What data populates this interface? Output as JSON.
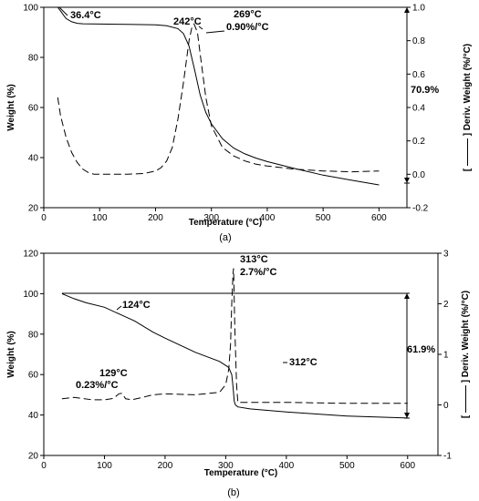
{
  "chart_data": [
    {
      "type": "line",
      "panel_label": "(a)",
      "xlabel": "Temperature (°C)",
      "ylabel": "Weight (%)",
      "ylabel_right": "[ ——— ] Deriv. Weight (%/°C)",
      "xlim": [
        0,
        650
      ],
      "ylim": [
        20,
        100
      ],
      "ylim_right": [
        -0.2,
        1.0
      ],
      "x_ticks": [
        "0",
        "100",
        "200",
        "300",
        "400",
        "500",
        "600"
      ],
      "y_ticks": [
        "20",
        "40",
        "60",
        "80",
        "100"
      ],
      "y_right_ticks": [
        "-0.2",
        "0.0",
        "0.2",
        "0.4",
        "0.6",
        "0.8",
        "1.0"
      ],
      "grid": false,
      "series": [
        {
          "axis": "left",
          "style": "solid",
          "x": [
            25,
            30,
            35,
            40,
            50,
            60,
            70,
            100,
            150,
            200,
            220,
            240,
            250,
            260,
            270,
            280,
            290,
            300,
            320,
            340,
            360,
            380,
            400,
            450,
            500,
            550,
            600
          ],
          "y": [
            100,
            98.5,
            97,
            95.5,
            94.2,
            93.6,
            93.4,
            93.3,
            93.2,
            93.0,
            92.6,
            91.5,
            89.5,
            84.5,
            75,
            65,
            58,
            53.5,
            47.5,
            43.8,
            41.5,
            39.8,
            38.4,
            35.6,
            33.0,
            31.0,
            29.1
          ]
        },
        {
          "axis": "right",
          "style": "dashed",
          "x": [
            25,
            30,
            40,
            50,
            60,
            70,
            80,
            90,
            100,
            150,
            180,
            200,
            210,
            220,
            230,
            240,
            250,
            260,
            265,
            269,
            275,
            280,
            290,
            300,
            320,
            340,
            360,
            380,
            400,
            450,
            500,
            550,
            600
          ],
          "y": [
            0.46,
            0.35,
            0.22,
            0.13,
            0.07,
            0.03,
            0.01,
            0.0,
            0.0,
            0.0,
            0.005,
            0.02,
            0.04,
            0.08,
            0.16,
            0.33,
            0.55,
            0.8,
            0.88,
            0.9,
            0.85,
            0.72,
            0.46,
            0.29,
            0.16,
            0.11,
            0.08,
            0.06,
            0.05,
            0.03,
            0.02,
            0.015,
            0.02
          ]
        }
      ],
      "annotations": [
        {
          "text": "36.4°C"
        },
        {
          "text": "242°C"
        },
        {
          "text": "269°C"
        },
        {
          "text": "0.90%/°C"
        },
        {
          "text": "70.9%"
        }
      ]
    },
    {
      "type": "line",
      "panel_label": "(b)",
      "xlabel": "Temperature (°C)",
      "ylabel": "Weight (%)",
      "ylabel_right": "[ ——— ] Deriv. Weight (%/°C)",
      "xlim": [
        0,
        650
      ],
      "ylim": [
        20,
        120
      ],
      "ylim_right": [
        -1,
        3
      ],
      "x_ticks": [
        "0",
        "100",
        "200",
        "300",
        "400",
        "500",
        "600"
      ],
      "y_ticks": [
        "20",
        "40",
        "60",
        "80",
        "100",
        "120"
      ],
      "y_right_ticks": [
        "-1",
        "0",
        "1",
        "2",
        "3"
      ],
      "grid": false,
      "series": [
        {
          "axis": "left",
          "style": "solid",
          "x": [
            30,
            50,
            70,
            100,
            124,
            150,
            180,
            200,
            250,
            290,
            300,
            305,
            310,
            312,
            314,
            316,
            320,
            340,
            400,
            500,
            600
          ],
          "y": [
            100,
            97.5,
            95.5,
            93.3,
            90,
            86.5,
            81,
            78,
            71,
            66.5,
            64.5,
            63.5,
            60,
            54,
            47,
            45,
            44,
            43,
            41.5,
            39.5,
            38.5
          ]
        },
        {
          "axis": "right",
          "style": "dashed",
          "x": [
            30,
            50,
            80,
            100,
            115,
            124,
            129,
            135,
            145,
            160,
            180,
            200,
            250,
            290,
            300,
            305,
            308,
            310,
            312,
            313,
            315,
            318,
            320,
            330,
            400,
            500,
            600
          ],
          "y": [
            0.12,
            0.15,
            0.1,
            0.1,
            0.13,
            0.22,
            0.23,
            0.12,
            0.1,
            0.14,
            0.2,
            0.22,
            0.2,
            0.25,
            0.4,
            0.7,
            1.2,
            2.0,
            2.6,
            2.7,
            1.5,
            0.4,
            0.05,
            0.05,
            0.05,
            0.03,
            0.03
          ]
        }
      ],
      "annotations": [
        {
          "text": "313°C"
        },
        {
          "text": "2.7%/°C"
        },
        {
          "text": "124°C"
        },
        {
          "text": "312°C"
        },
        {
          "text": "129°C"
        },
        {
          "text": "0.23%/°C"
        },
        {
          "text": "61.9%"
        }
      ]
    }
  ]
}
